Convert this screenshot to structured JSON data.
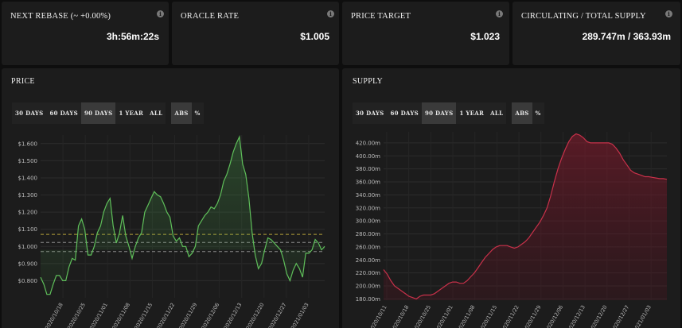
{
  "stats": [
    {
      "title": "NEXT REBASE (~ +0.00%)",
      "value": "3h:56m:22s"
    },
    {
      "title": "ORACLE RATE",
      "value": "$1.005"
    },
    {
      "title": "PRICE TARGET",
      "value": "$1.023"
    },
    {
      "title": "CIRCULATING / TOTAL SUPPLY",
      "value": "289.747m / 363.93m"
    }
  ],
  "info_icon": {
    "glyph": "i",
    "name": "info-icon"
  },
  "price_panel": {
    "title": "PRICE",
    "range_buttons": [
      "30 DAYS",
      "60 DAYS",
      "90 DAYS",
      "1 YEAR",
      "ALL"
    ],
    "active_range": "90 DAYS",
    "mode_buttons": [
      "ABS",
      "%"
    ],
    "active_mode": "ABS"
  },
  "supply_panel": {
    "title": "SUPPLY",
    "range_buttons": [
      "30 DAYS",
      "60 DAYS",
      "90 DAYS",
      "1 YEAR",
      "ALL"
    ],
    "active_range": "90 DAYS",
    "mode_buttons": [
      "ABS",
      "%"
    ],
    "active_mode": "ABS"
  },
  "colors": {
    "price_line": "#5fbf5a",
    "supply_line": "#c8314a",
    "ref_line_yellow": "#b5a23a",
    "ref_line_gray": "#8a8a8a"
  },
  "chart_data": [
    {
      "type": "line",
      "name": "price",
      "ylim": [
        0.7,
        1.65
      ],
      "y_ticks": [
        0.8,
        0.9,
        1.0,
        1.1,
        1.2,
        1.3,
        1.4,
        1.5,
        1.6
      ],
      "y_tick_labels": [
        "$0.800",
        "$0.900",
        "$1.000",
        "$1.100",
        "$1.200",
        "$1.300",
        "$1.400",
        "$1.500",
        "$1.600"
      ],
      "x_tick_labels": [
        "2020/10/18",
        "2020/10/25",
        "2020/11/01",
        "2020/11/08",
        "2020/11/15",
        "2020/11/22",
        "2020/11/29",
        "2020/12/06",
        "2020/12/13",
        "2020/12/20",
        "2020/12/27",
        "2021/01/03"
      ],
      "x_tick_days": [
        7,
        14,
        21,
        28,
        35,
        42,
        49,
        56,
        63,
        70,
        77,
        84
      ],
      "x_range_days": [
        0,
        89
      ],
      "reference_lines": [
        {
          "value": 1.07,
          "style": "yellow"
        },
        {
          "value": 1.023,
          "style": "gray"
        },
        {
          "value": 0.97,
          "style": "gray"
        }
      ],
      "series": [
        {
          "values": [
            0.82,
            0.78,
            0.72,
            0.72,
            0.78,
            0.83,
            0.83,
            0.8,
            0.8,
            0.88,
            0.93,
            0.92,
            1.12,
            1.16,
            1.1,
            0.95,
            0.95,
            1.0,
            1.08,
            1.12,
            1.2,
            1.25,
            1.28,
            1.12,
            1.02,
            1.08,
            1.18,
            1.06,
            1.0,
            0.93,
            1.0,
            1.05,
            1.08,
            1.2,
            1.24,
            1.28,
            1.32,
            1.3,
            1.29,
            1.25,
            1.2,
            1.17,
            1.06,
            1.03,
            1.05,
            1.0,
            1.0,
            0.94,
            0.96,
            1.0,
            1.12,
            1.15,
            1.18,
            1.2,
            1.23,
            1.22,
            1.25,
            1.3,
            1.38,
            1.42,
            1.48,
            1.55,
            1.6,
            1.64,
            1.48,
            1.42,
            1.28,
            1.08,
            0.95,
            0.87,
            0.9,
            0.98,
            1.05,
            1.04,
            1.02,
            1.0,
            0.98,
            0.92,
            0.84,
            0.8,
            0.86,
            0.9,
            0.87,
            0.82,
            0.96,
            0.96,
            0.98,
            1.04,
            1.02,
            0.98,
            1.0
          ]
        }
      ]
    },
    {
      "type": "area",
      "name": "supply",
      "ylim": [
        178,
        437
      ],
      "y_ticks": [
        180,
        200,
        220,
        240,
        260,
        280,
        300,
        320,
        340,
        360,
        380,
        400,
        420
      ],
      "y_tick_labels": [
        "180.00m",
        "200.00m",
        "220.00m",
        "240.00m",
        "260.00m",
        "280.00m",
        "300.00m",
        "320.00m",
        "340.00m",
        "360.00m",
        "380.00m",
        "400.00m",
        "420.00m"
      ],
      "x_tick_labels": [
        "2020/10/11",
        "2020/10/18",
        "2020/10/25",
        "2020/11/01",
        "2020/11/08",
        "2020/11/15",
        "2020/11/22",
        "2020/11/29",
        "2020/12/06",
        "2020/12/13",
        "2020/12/20",
        "2020/12/27",
        "2021/01/03"
      ],
      "x_tick_days": [
        0,
        7,
        14,
        21,
        28,
        35,
        42,
        49,
        56,
        63,
        70,
        77,
        84
      ],
      "x_range_days": [
        -1,
        89
      ],
      "series": [
        {
          "values": [
            225,
            218,
            208,
            200,
            196,
            192,
            188,
            184,
            182,
            180,
            184,
            186,
            186,
            186,
            188,
            192,
            196,
            200,
            204,
            206,
            206,
            204,
            204,
            208,
            214,
            220,
            228,
            236,
            244,
            250,
            256,
            260,
            262,
            262,
            262,
            260,
            258,
            260,
            264,
            268,
            274,
            282,
            290,
            298,
            308,
            320,
            338,
            360,
            380,
            396,
            410,
            422,
            430,
            434,
            432,
            428,
            422,
            420,
            420,
            420,
            420,
            420,
            420,
            418,
            412,
            404,
            394,
            386,
            378,
            374,
            372,
            370,
            368,
            368,
            367,
            366,
            365,
            365,
            364
          ]
        }
      ]
    }
  ]
}
